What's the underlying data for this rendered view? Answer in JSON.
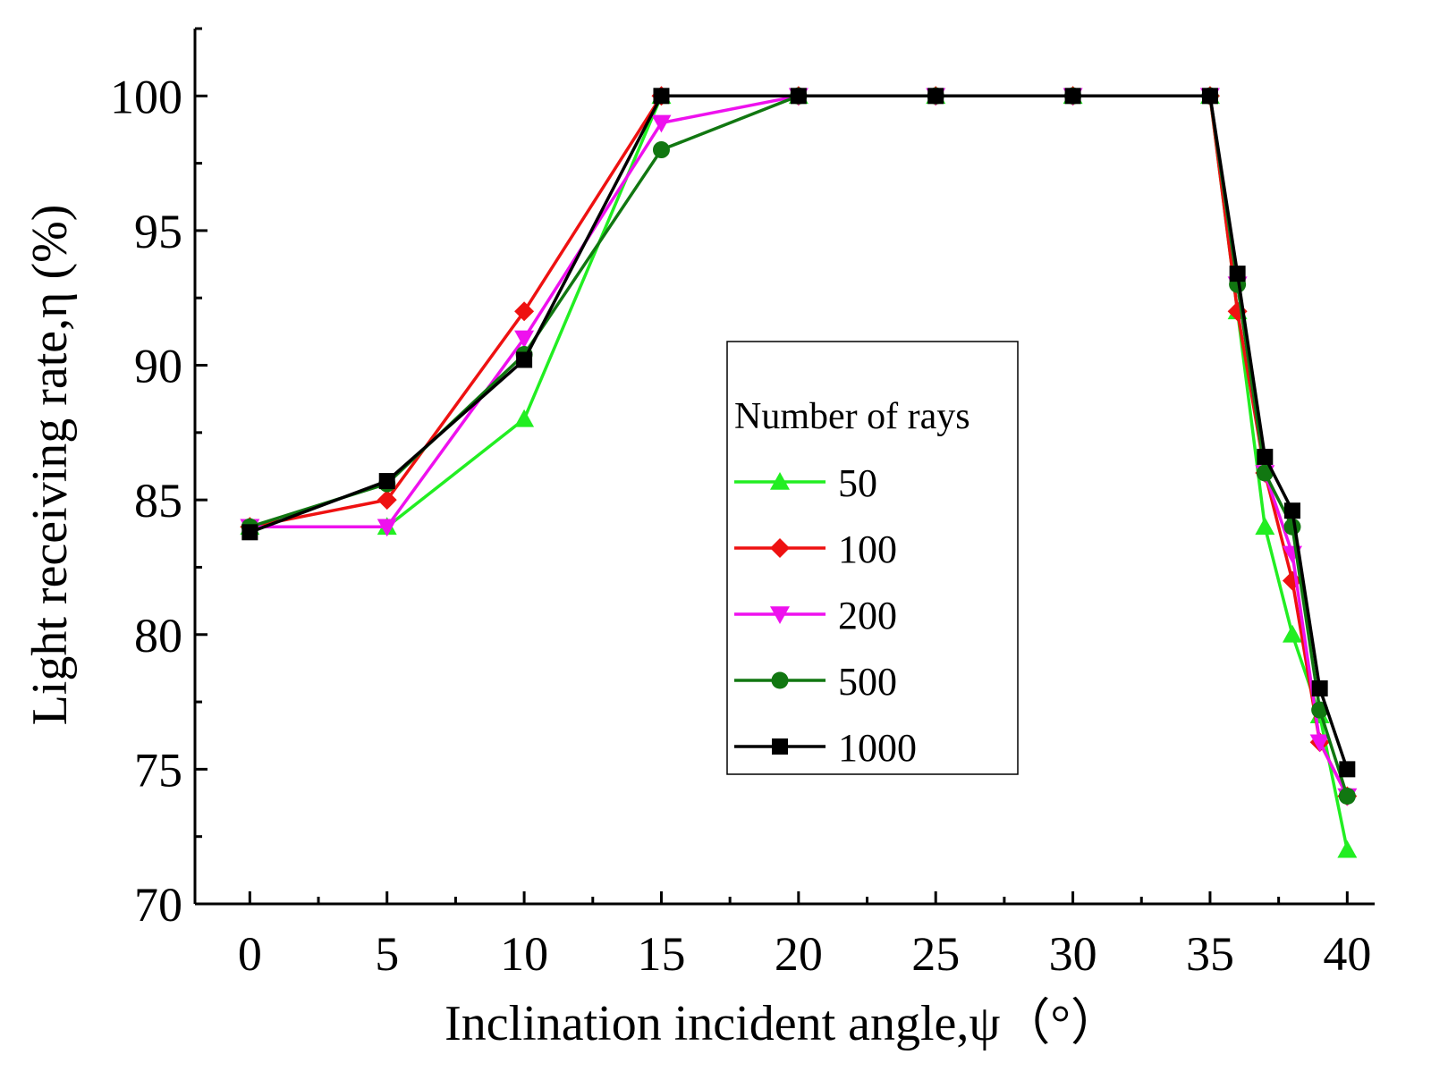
{
  "chart_data": {
    "type": "line",
    "xlabel": "Inclination incident angle,ψ（°）",
    "ylabel": "Light receiving rate,η (%)",
    "xlim": [
      -2,
      41
    ],
    "ylim": [
      70,
      102.5
    ],
    "x_ticks": [
      0,
      5,
      10,
      15,
      20,
      25,
      30,
      35,
      40
    ],
    "y_ticks": [
      70,
      75,
      80,
      85,
      90,
      95,
      100
    ],
    "x_tick_labels": [
      "0",
      "5",
      "10",
      "15",
      "20",
      "25",
      "30",
      "35",
      "40"
    ],
    "y_tick_labels": [
      "70",
      "75",
      "80",
      "85",
      "90",
      "95",
      "100"
    ],
    "x": [
      0,
      5,
      10,
      15,
      20,
      25,
      30,
      35,
      36,
      37,
      38,
      39,
      40
    ],
    "grid": false,
    "legend": {
      "title": "Number of rays",
      "placement": "center-right"
    },
    "series": [
      {
        "name": "50",
        "color": "#22ee22",
        "marker": "triangle-up",
        "values": [
          84,
          84,
          88,
          100,
          100,
          100,
          100,
          100,
          92,
          84,
          80,
          77,
          72
        ]
      },
      {
        "name": "100",
        "color": "#ee1111",
        "marker": "diamond",
        "values": [
          84,
          85,
          92,
          100,
          100,
          100,
          100,
          100,
          92,
          86,
          82,
          76,
          74
        ]
      },
      {
        "name": "200",
        "color": "#ee11ee",
        "marker": "triangle-down",
        "values": [
          84,
          84,
          91,
          99,
          100,
          100,
          100,
          100,
          93,
          86,
          83,
          76,
          74
        ]
      },
      {
        "name": "500",
        "color": "#117711",
        "marker": "circle",
        "values": [
          84,
          85.6,
          90.4,
          98,
          100,
          100,
          100,
          100,
          93,
          86,
          84,
          77.2,
          74
        ]
      },
      {
        "name": "1000",
        "color": "#000000",
        "marker": "square",
        "values": [
          83.8,
          85.7,
          90.2,
          100,
          100,
          100,
          100,
          100,
          93.4,
          86.6,
          84.6,
          78,
          75
        ]
      }
    ]
  }
}
